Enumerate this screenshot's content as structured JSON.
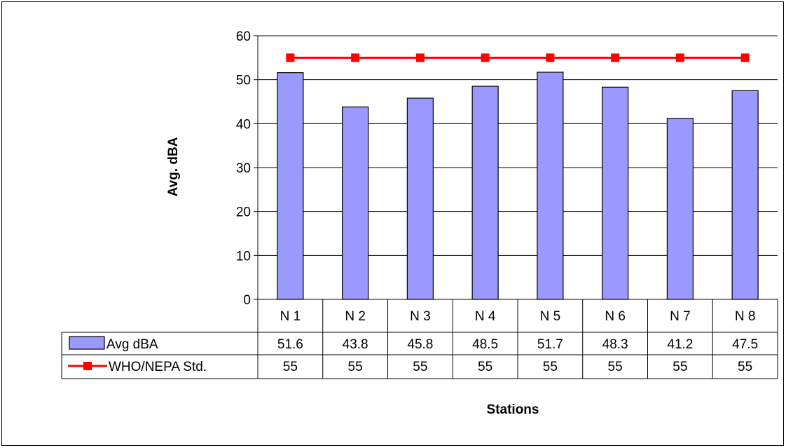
{
  "chart_data": {
    "type": "bar",
    "categories": [
      "N 1",
      "N 2",
      "N 3",
      "N 4",
      "N 5",
      "N 6",
      "N 7",
      "N 8"
    ],
    "series": [
      {
        "name": "Avg dBA",
        "type": "bar",
        "color": "#9999ff",
        "values": [
          51.6,
          43.8,
          45.8,
          48.5,
          51.7,
          48.3,
          41.2,
          47.5
        ],
        "labels": [
          "51.6",
          "43.8",
          "45.8",
          "48.5",
          "51.7",
          "48.3",
          "41.2",
          "47.5"
        ]
      },
      {
        "name": "WHO/NEPA Std.",
        "type": "line",
        "color": "#ff0000",
        "values": [
          55,
          55,
          55,
          55,
          55,
          55,
          55,
          55
        ],
        "labels": [
          "55",
          "55",
          "55",
          "55",
          "55",
          "55",
          "55",
          "55"
        ]
      }
    ],
    "xlabel": "Stations",
    "ylabel": "Avg. dBA",
    "ylim": [
      0,
      60
    ],
    "yticks": [
      0,
      10,
      20,
      30,
      40,
      50,
      60
    ],
    "grid": true,
    "legend": "data-table"
  }
}
